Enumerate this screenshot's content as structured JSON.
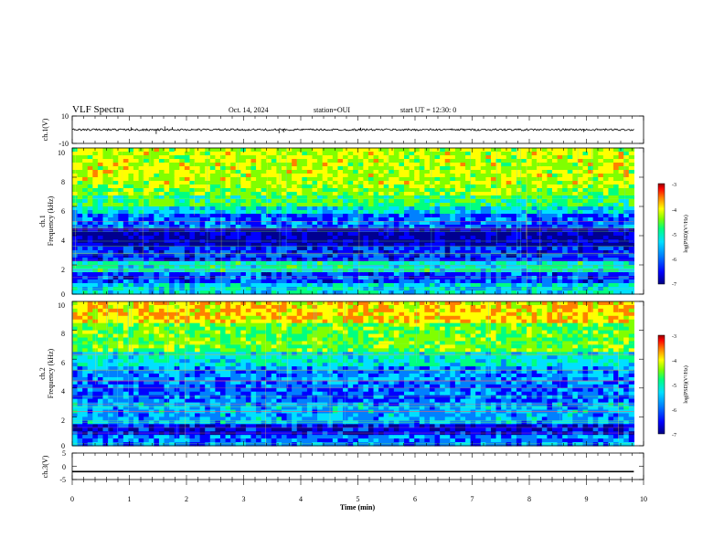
{
  "header": {
    "title": "VLF Spectra",
    "date": "Oct. 14, 2024",
    "station": "station=OUI",
    "start": "start UT =   12:30: 0"
  },
  "chart_data": [
    {
      "type": "line",
      "panel": "ch1-waveform",
      "ylabel": "ch.1(V)",
      "ylim": [
        -10,
        10
      ],
      "y_ticks": [
        "10",
        "-10"
      ],
      "xlim": [
        0,
        10
      ],
      "baseline": 0,
      "spikes": [
        {
          "x": 1.03,
          "y": 1.8
        },
        {
          "x": 1.47,
          "y": -3.2
        },
        {
          "x": 1.62,
          "y": 2.4
        },
        {
          "x": 1.75,
          "y": 1.9
        },
        {
          "x": 3.62,
          "y": -2.6
        },
        {
          "x": 3.7,
          "y": -1.9
        },
        {
          "x": 5.05,
          "y": 1.5
        },
        {
          "x": 8.95,
          "y": -1.7
        }
      ]
    },
    {
      "type": "heatmap",
      "panel": "ch1-spectrogram",
      "ylabel": [
        "ch.1",
        "Frequency (kHz)"
      ],
      "ylim": [
        0,
        10
      ],
      "y_ticks": [
        "0",
        "2",
        "4",
        "6",
        "8",
        "10"
      ],
      "xlim": [
        0,
        10
      ],
      "bands": [
        {
          "from": 0.0,
          "to": 0.8,
          "level": -5.6
        },
        {
          "from": 0.8,
          "to": 1.4,
          "level": -6.2
        },
        {
          "from": 1.4,
          "to": 2.2,
          "level": -5.4
        },
        {
          "from": 2.2,
          "to": 3.2,
          "level": -6.3
        },
        {
          "from": 3.2,
          "to": 4.6,
          "level": -6.7
        },
        {
          "from": 4.6,
          "to": 5.4,
          "level": -6.1
        },
        {
          "from": 5.4,
          "to": 6.0,
          "level": -5.6
        },
        {
          "from": 6.0,
          "to": 6.8,
          "level": -5.1
        },
        {
          "from": 6.8,
          "to": 7.6,
          "level": -4.8
        },
        {
          "from": 7.6,
          "to": 10.0,
          "level": -4.6
        }
      ],
      "colorbar": {
        "label": "log(PSD)(V²/Hz)",
        "range": [
          -7,
          -3
        ],
        "ticks": [
          "-3",
          "-4",
          "-5",
          "-6",
          "-7"
        ]
      }
    },
    {
      "type": "heatmap",
      "panel": "ch2-spectrogram",
      "ylabel": [
        "ch.2",
        "Frequency (kHz)"
      ],
      "ylim": [
        0,
        10
      ],
      "y_ticks": [
        "0",
        "2",
        "4",
        "6",
        "8",
        "10"
      ],
      "xlim": [
        0,
        10
      ],
      "bands": [
        {
          "from": 0.0,
          "to": 0.8,
          "level": -6.0
        },
        {
          "from": 0.8,
          "to": 1.6,
          "level": -6.5
        },
        {
          "from": 1.6,
          "to": 3.0,
          "level": -5.8
        },
        {
          "from": 3.0,
          "to": 4.5,
          "level": -6.1
        },
        {
          "from": 4.5,
          "to": 5.6,
          "level": -5.9
        },
        {
          "from": 5.6,
          "to": 6.6,
          "level": -5.5
        },
        {
          "from": 6.6,
          "to": 8.6,
          "level": -4.9
        },
        {
          "from": 8.6,
          "to": 10.0,
          "level": -4.3
        }
      ],
      "colorbar": {
        "label": "log(PSD)(V²/Hz)",
        "range": [
          -7,
          -3
        ],
        "ticks": [
          "-3",
          "-4",
          "-5",
          "-6",
          "-7"
        ]
      }
    },
    {
      "type": "line",
      "panel": "ch3-waveform",
      "ylabel": "ch.3(V)",
      "ylim": [
        -5,
        5
      ],
      "y_ticks": [
        "5",
        "0",
        "-5"
      ],
      "xlim": [
        0,
        10
      ],
      "values": [
        {
          "x": 0,
          "y": -2
        },
        {
          "x": 9.83,
          "y": -2
        }
      ]
    }
  ],
  "x_axis": {
    "label": "Time (min)",
    "ticks": [
      "0",
      "1",
      "2",
      "3",
      "4",
      "5",
      "6",
      "7",
      "8",
      "9",
      "10"
    ]
  },
  "colors": {
    "scale": [
      "#000090",
      "#0000ff",
      "#0080ff",
      "#00e0ff",
      "#00ff80",
      "#80ff00",
      "#ffff00",
      "#ff8000",
      "#ff0000",
      "#b00000"
    ]
  }
}
